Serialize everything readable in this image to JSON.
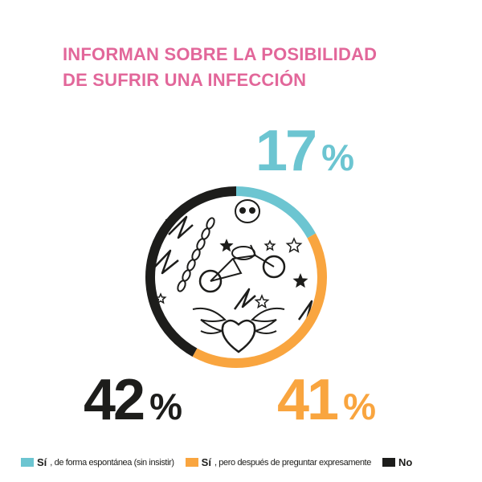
{
  "title": {
    "line1": "INFORMAN SOBRE LA POSIBILIDAD",
    "line2": "DE SUFRIR UNA INFECCIÓN"
  },
  "colors": {
    "title": "#e2679a",
    "cyan": "#6cc5d1",
    "orange": "#f9a53f",
    "dark": "#1d1d1b"
  },
  "chart_data": {
    "type": "pie",
    "title": "INFORMAN SOBRE LA POSIBILIDAD DE SUFRIR UNA INFECCIÓN",
    "style": "donut",
    "categories": [
      "Sí, de forma espontánea (sin insistir)",
      "Sí, pero después de preguntar expresamente",
      "No"
    ],
    "values": [
      17,
      41,
      42
    ],
    "unit": "%",
    "series_colors": [
      "#6cc5d1",
      "#f9a53f",
      "#1d1d1b"
    ],
    "data_labels": [
      {
        "value": "17",
        "unit": "%"
      },
      {
        "value": "41",
        "unit": "%"
      },
      {
        "value": "42",
        "unit": "%"
      }
    ]
  },
  "legend": [
    {
      "bold": "Sí",
      "rest": ", de forma espontánea (sin insistir)",
      "color": "#6cc5d1"
    },
    {
      "bold": "Sí",
      "rest": ", pero después de preguntar expresamente",
      "color": "#f9a53f"
    },
    {
      "bold": "No",
      "rest": "",
      "color": "#1d1d1b"
    }
  ]
}
